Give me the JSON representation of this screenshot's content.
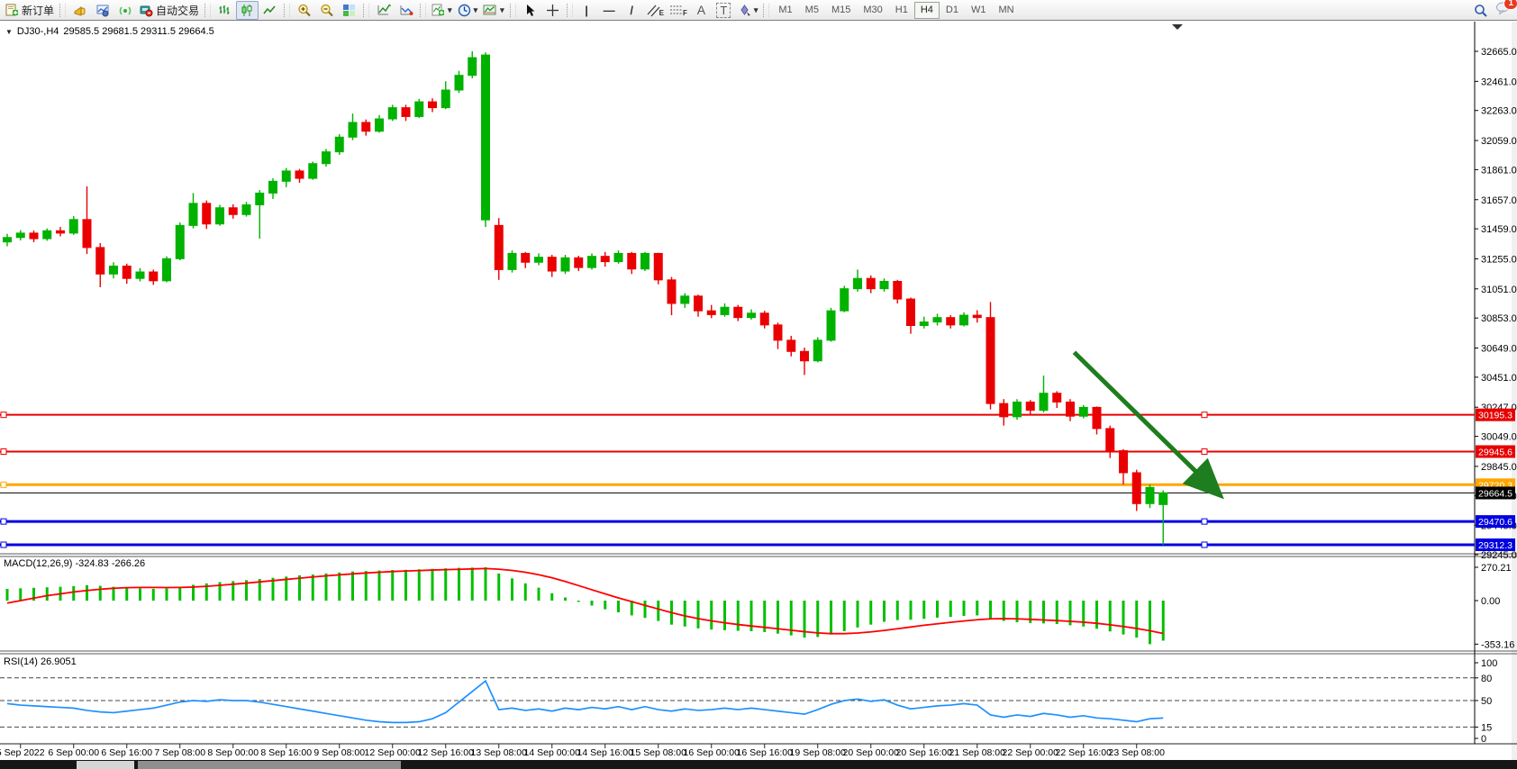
{
  "window": {
    "badge_count": "1"
  },
  "toolbar": {
    "new_order_label": "新订单",
    "auto_trading_label": "自动交易",
    "tool_glyphs": {
      "vline": "|",
      "hline": "—",
      "trendline": "/",
      "text": "A",
      "text_label": "T",
      "channel_letter": "E",
      "fibo_letter": "F"
    },
    "icon_names": [
      "new-order-icon",
      "announcement-icon",
      "market-watch-icon",
      "signal-icon",
      "auto-trading-icon",
      "bar-chart-icon",
      "candlestick-chart-icon",
      "line-chart-icon",
      "zoom-in-icon",
      "zoom-out-icon",
      "tile-windows-icon",
      "indicators-icon",
      "objects-icon",
      "new-chart-icon",
      "period-clock-icon",
      "template-icon",
      "cursor-icon",
      "crosshair-icon",
      "arrows-tool-icon",
      "search-icon",
      "chat-icon"
    ],
    "timeframes": [
      "M1",
      "M5",
      "M15",
      "M30",
      "H1",
      "H4",
      "D1",
      "W1",
      "MN"
    ],
    "active_timeframe": "H4"
  },
  "chart": {
    "title_symbol": "DJ30-,H4",
    "title_ohlc": "29585.5 29681.5 29311.5 29664.5"
  },
  "chart_data": {
    "type": "candlestick",
    "title": "DJ30-,H4",
    "price_ylim": [
      29245,
      32842
    ],
    "price_ticks": [
      32665.0,
      32461.0,
      32263.0,
      32059.0,
      31861.0,
      31657.0,
      31459.0,
      31255.0,
      31051.0,
      30853.0,
      30649.0,
      30451.0,
      30247.0,
      30049.0,
      29845.0,
      29645.0,
      29445.0,
      29245.0
    ],
    "x_labels": [
      "5 Sep 2022",
      "6 Sep 00:00",
      "6 Sep 16:00",
      "7 Sep 08:00",
      "8 Sep 00:00",
      "8 Sep 16:00",
      "9 Sep 08:00",
      "12 Sep 00:00",
      "12 Sep 16:00",
      "13 Sep 08:00",
      "14 Sep 00:00",
      "14 Sep 16:00",
      "15 Sep 08:00",
      "16 Sep 00:00",
      "16 Sep 16:00",
      "19 Sep 08:00",
      "20 Sep 00:00",
      "20 Sep 16:00",
      "21 Sep 08:00",
      "22 Sep 00:00",
      "22 Sep 16:00",
      "23 Sep 08:00"
    ],
    "colors": {
      "up": "#00b200",
      "down": "#ea0000",
      "macd_bar": "#00c000",
      "macd_signal": "#ff0000",
      "rsi_line": "#1e90ff",
      "arrow": "#1e7d1e"
    },
    "candles": [
      [
        31370,
        31425,
        31340,
        31400
      ],
      [
        31400,
        31450,
        31380,
        31430
      ],
      [
        31430,
        31448,
        31368,
        31392
      ],
      [
        31392,
        31462,
        31378,
        31446
      ],
      [
        31446,
        31472,
        31408,
        31430
      ],
      [
        31430,
        31545,
        31418,
        31522
      ],
      [
        31522,
        31748,
        31288,
        31332
      ],
      [
        31332,
        31362,
        31062,
        31152
      ],
      [
        31152,
        31232,
        31122,
        31206
      ],
      [
        31206,
        31222,
        31086,
        31122
      ],
      [
        31122,
        31192,
        31102,
        31166
      ],
      [
        31166,
        31182,
        31078,
        31106
      ],
      [
        31106,
        31272,
        31096,
        31256
      ],
      [
        31256,
        31502,
        31246,
        31482
      ],
      [
        31482,
        31702,
        31462,
        31632
      ],
      [
        31632,
        31652,
        31458,
        31492
      ],
      [
        31492,
        31622,
        31480,
        31602
      ],
      [
        31602,
        31626,
        31528,
        31556
      ],
      [
        31556,
        31642,
        31542,
        31622
      ],
      [
        31622,
        31722,
        31392,
        31702
      ],
      [
        31702,
        31802,
        31662,
        31782
      ],
      [
        31782,
        31872,
        31742,
        31852
      ],
      [
        31852,
        31866,
        31772,
        31802
      ],
      [
        31802,
        31916,
        31792,
        31902
      ],
      [
        31902,
        32002,
        31882,
        31982
      ],
      [
        31982,
        32102,
        31962,
        32082
      ],
      [
        32082,
        32242,
        32062,
        32182
      ],
      [
        32182,
        32202,
        32092,
        32122
      ],
      [
        32122,
        32232,
        32112,
        32206
      ],
      [
        32206,
        32302,
        32192,
        32282
      ],
      [
        32282,
        32302,
        32192,
        32222
      ],
      [
        32222,
        32342,
        32212,
        32322
      ],
      [
        32322,
        32346,
        32252,
        32282
      ],
      [
        32282,
        32462,
        32272,
        32402
      ],
      [
        32402,
        32532,
        32382,
        32502
      ],
      [
        32502,
        32665,
        32482,
        32622
      ],
      [
        31520,
        32658,
        31472,
        32640
      ],
      [
        31482,
        31532,
        31112,
        31182
      ],
      [
        31182,
        31312,
        31162,
        31292
      ],
      [
        31292,
        31302,
        31192,
        31232
      ],
      [
        31232,
        31292,
        31212,
        31266
      ],
      [
        31266,
        31282,
        31132,
        31172
      ],
      [
        31172,
        31282,
        31152,
        31262
      ],
      [
        31262,
        31276,
        31172,
        31196
      ],
      [
        31196,
        31292,
        31182,
        31272
      ],
      [
        31272,
        31302,
        31202,
        31236
      ],
      [
        31236,
        31312,
        31222,
        31292
      ],
      [
        31292,
        31302,
        31152,
        31186
      ],
      [
        31186,
        31302,
        31172,
        31292
      ],
      [
        31292,
        31296,
        31082,
        31112
      ],
      [
        31112,
        31132,
        30872,
        30952
      ],
      [
        30952,
        31022,
        30922,
        31002
      ],
      [
        31002,
        31012,
        30862,
        30902
      ],
      [
        30902,
        30942,
        30852,
        30876
      ],
      [
        30876,
        30952,
        30862,
        30926
      ],
      [
        30926,
        30942,
        30832,
        30856
      ],
      [
        30856,
        30912,
        30842,
        30886
      ],
      [
        30886,
        30902,
        30782,
        30806
      ],
      [
        30806,
        30822,
        30642,
        30702
      ],
      [
        30702,
        30732,
        30592,
        30626
      ],
      [
        30626,
        30652,
        30466,
        30562
      ],
      [
        30562,
        30722,
        30552,
        30702
      ],
      [
        30702,
        30922,
        30692,
        30902
      ],
      [
        30902,
        31072,
        30892,
        31052
      ],
      [
        31052,
        31182,
        31032,
        31122
      ],
      [
        31122,
        31142,
        31022,
        31052
      ],
      [
        31052,
        31122,
        31032,
        31102
      ],
      [
        31102,
        31112,
        30952,
        30982
      ],
      [
        30982,
        30992,
        30746,
        30802
      ],
      [
        30802,
        30862,
        30782,
        30826
      ],
      [
        30826,
        30882,
        30802,
        30856
      ],
      [
        30856,
        30872,
        30782,
        30806
      ],
      [
        30806,
        30892,
        30796,
        30872
      ],
      [
        30872,
        30906,
        30822,
        30856
      ],
      [
        30856,
        30962,
        30232,
        30272
      ],
      [
        30272,
        30302,
        30122,
        30182
      ],
      [
        30182,
        30302,
        30162,
        30282
      ],
      [
        30282,
        30296,
        30192,
        30226
      ],
      [
        30226,
        30462,
        30212,
        30342
      ],
      [
        30342,
        30356,
        30242,
        30282
      ],
      [
        30282,
        30302,
        30152,
        30186
      ],
      [
        30186,
        30262,
        30172,
        30246
      ],
      [
        30246,
        30252,
        30062,
        30102
      ],
      [
        30102,
        30122,
        29902,
        29952
      ],
      [
        29952,
        29962,
        29722,
        29802
      ],
      [
        29802,
        29822,
        29542,
        29592
      ],
      [
        29592,
        29722,
        29562,
        29702
      ],
      [
        29585.5,
        29681.5,
        29311.5,
        29664.5
      ]
    ],
    "macd": {
      "label": "MACD(12,26,9) -324.83 -266.26",
      "ticks": [
        270.21,
        0.0,
        -353.16
      ],
      "ylim": [
        -353.16,
        270.21
      ],
      "histogram": [
        95,
        100,
        104,
        108,
        112,
        118,
        125,
        120,
        112,
        105,
        100,
        96,
        100,
        112,
        128,
        140,
        150,
        158,
        166,
        175,
        185,
        195,
        205,
        212,
        220,
        228,
        236,
        240,
        244,
        248,
        250,
        254,
        258,
        262,
        266,
        268,
        270,
        220,
        180,
        140,
        105,
        60,
        25,
        -10,
        -40,
        -70,
        -95,
        -120,
        -140,
        -165,
        -195,
        -210,
        -225,
        -235,
        -240,
        -245,
        -248,
        -255,
        -268,
        -282,
        -300,
        -295,
        -275,
        -248,
        -218,
        -195,
        -172,
        -158,
        -155,
        -148,
        -138,
        -132,
        -124,
        -120,
        -145,
        -165,
        -175,
        -182,
        -185,
        -190,
        -200,
        -210,
        -228,
        -250,
        -275,
        -300,
        -353.16,
        -324.83
      ],
      "signal": [
        -20,
        0,
        20,
        40,
        55,
        70,
        82,
        92,
        100,
        105,
        107,
        107,
        106,
        107,
        110,
        116,
        124,
        133,
        142,
        152,
        162,
        172,
        182,
        192,
        201,
        209,
        217,
        224,
        230,
        236,
        240,
        244,
        248,
        251,
        254,
        257,
        260,
        255,
        245,
        230,
        210,
        185,
        155,
        122,
        88,
        55,
        22,
        -8,
        -38,
        -68,
        -98,
        -124,
        -146,
        -164,
        -180,
        -194,
        -206,
        -217,
        -228,
        -240,
        -252,
        -262,
        -268,
        -268,
        -263,
        -254,
        -242,
        -228,
        -214,
        -200,
        -188,
        -176,
        -165,
        -155,
        -148,
        -146,
        -148,
        -152,
        -157,
        -162,
        -168,
        -175,
        -184,
        -196,
        -210,
        -226,
        -245,
        -266.26
      ]
    },
    "rsi": {
      "label": "RSI(14) 26.9051",
      "ticks": [
        100,
        80,
        50,
        15,
        0
      ],
      "levels": [
        80,
        50,
        15
      ],
      "ylim": [
        0,
        100
      ],
      "values": [
        46,
        44,
        43,
        42,
        41,
        40,
        37,
        35,
        34,
        36,
        38,
        40,
        44,
        48,
        50,
        49,
        51,
        50,
        50,
        48,
        45,
        42,
        39,
        36,
        33,
        30,
        27,
        24,
        22,
        21,
        21,
        22,
        26,
        34,
        48,
        62,
        76,
        38,
        40,
        37,
        39,
        36,
        40,
        38,
        41,
        39,
        42,
        38,
        42,
        38,
        36,
        39,
        37,
        38,
        40,
        38,
        40,
        38,
        36,
        34,
        32,
        38,
        45,
        50,
        52,
        49,
        51,
        44,
        39,
        41,
        43,
        44,
        46,
        44,
        31,
        28,
        31,
        29,
        33,
        31,
        28,
        30,
        27,
        26,
        24,
        22,
        26,
        26.9
      ]
    },
    "annotations": {
      "hlines": [
        {
          "label": "30195.3",
          "value": 30195.3,
          "color": "#e80000",
          "width": 2,
          "handles": true
        },
        {
          "label": "29945.6",
          "value": 29945.6,
          "color": "#e80000",
          "width": 2,
          "handles": true
        },
        {
          "label": "29720.3",
          "value": 29720.3,
          "color": "#ffa500",
          "width": 3,
          "handles": true
        },
        {
          "label": "29664.5",
          "value": 29664.5,
          "color": "#000000",
          "width": 1,
          "handles": false
        },
        {
          "label": "29470.6",
          "value": 29470.6,
          "color": "#0000e0",
          "width": 3,
          "handles": true
        },
        {
          "label": "29312.3",
          "value": 29312.3,
          "color": "#0000e0",
          "width": 3,
          "handles": true
        }
      ],
      "arrow": {
        "from_index": 80.3,
        "from_price": 30620,
        "to_index": 91.1,
        "to_price": 29665
      }
    }
  }
}
